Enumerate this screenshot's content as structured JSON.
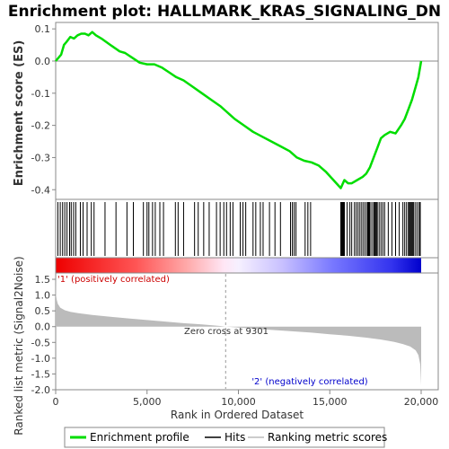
{
  "chart_data": {
    "type": "line",
    "title": "Enrichment plot: HALLMARK_KRAS_SIGNALING_DN",
    "xlabel": "Rank in Ordered Dataset",
    "xlim": [
      0,
      20000
    ],
    "x_ticks": [
      0,
      5000,
      10000,
      15000,
      20000
    ],
    "x_tick_labels": [
      "0",
      "5,000",
      "10,000",
      "15,000",
      "20,000"
    ],
    "es_panel": {
      "ylabel": "Enrichment score (ES)",
      "ylim": [
        -0.43,
        0.12
      ],
      "y_ticks": [
        0.1,
        0.0,
        -0.1,
        -0.2,
        -0.3,
        -0.4
      ],
      "y_tick_labels": [
        "0.1",
        "0.0",
        "-0.1",
        "-0.2",
        "-0.3",
        "-0.4"
      ],
      "series": [
        {
          "name": "Enrichment profile",
          "color": "#00dd00",
          "x": [
            0,
            300,
            450,
            600,
            800,
            1000,
            1200,
            1400,
            1600,
            1800,
            2000,
            2200,
            2500,
            3000,
            3500,
            3800,
            4200,
            4600,
            5000,
            5400,
            5800,
            6200,
            6600,
            7000,
            7500,
            8000,
            8500,
            9000,
            9301,
            9800,
            10300,
            10800,
            11300,
            11800,
            12300,
            12800,
            13200,
            13600,
            14000,
            14400,
            14800,
            15200,
            15600,
            15800,
            16000,
            16200,
            16500,
            16800,
            17000,
            17200,
            17400,
            17600,
            17800,
            18000,
            18300,
            18600,
            18900,
            19100,
            19300,
            19500,
            19700,
            19850,
            20000
          ],
          "y": [
            0.0,
            0.02,
            0.05,
            0.06,
            0.075,
            0.07,
            0.08,
            0.085,
            0.085,
            0.08,
            0.09,
            0.08,
            0.07,
            0.05,
            0.03,
            0.025,
            0.01,
            -0.005,
            -0.01,
            -0.01,
            -0.02,
            -0.035,
            -0.05,
            -0.06,
            -0.08,
            -0.1,
            -0.12,
            -0.14,
            -0.155,
            -0.18,
            -0.2,
            -0.22,
            -0.235,
            -0.25,
            -0.265,
            -0.28,
            -0.3,
            -0.31,
            -0.315,
            -0.325,
            -0.345,
            -0.37,
            -0.395,
            -0.37,
            -0.38,
            -0.38,
            -0.37,
            -0.36,
            -0.35,
            -0.33,
            -0.3,
            -0.27,
            -0.24,
            -0.23,
            -0.22,
            -0.225,
            -0.2,
            -0.18,
            -0.15,
            -0.12,
            -0.08,
            -0.05,
            0.0
          ]
        }
      ]
    },
    "hits_panel": {
      "label": "Hits",
      "hit_ranks": [
        120,
        250,
        380,
        500,
        620,
        760,
        850,
        980,
        1100,
        1350,
        1500,
        1720,
        1950,
        2100,
        2700,
        3300,
        3900,
        4250,
        4800,
        5000,
        5100,
        5300,
        5450,
        5700,
        5900,
        6550,
        6700,
        7000,
        7600,
        7800,
        8100,
        8400,
        8800,
        9000,
        9200,
        9350,
        9550,
        9700,
        10100,
        10250,
        10400,
        10800,
        10950,
        11200,
        11350,
        11700,
        12000,
        12300,
        12850,
        12950,
        13050,
        13150,
        13650,
        13800,
        13950,
        15600,
        15650,
        15700,
        15750,
        15800,
        15950,
        16100,
        16200,
        16350,
        16450,
        16550,
        16650,
        16750,
        16850,
        16950,
        17050,
        17100,
        17150,
        17200,
        17300,
        17400,
        17450,
        17500,
        17550,
        17600,
        17700,
        17800,
        17900,
        18000,
        18200,
        18400,
        18600,
        18800,
        19000,
        19100,
        19200,
        19300,
        19350,
        19400,
        19450,
        19500,
        19550,
        19600,
        19700,
        19800,
        19900,
        19950
      ]
    },
    "metric_panel": {
      "ylabel": "Ranked list metric (Signal2Noise)",
      "series_name": "Ranking metric scores",
      "color": "#bbbbbb",
      "ylim": [
        -2.0,
        1.7
      ],
      "y_ticks": [
        1.5,
        1.0,
        0.5,
        0.0,
        -0.5,
        -1.0,
        -1.5,
        -2.0
      ],
      "y_tick_labels": [
        "1.5",
        "1.0",
        "0.5",
        "0.0",
        "-0.5",
        "-1.0",
        "-1.5",
        "-2.0"
      ],
      "x": [
        0,
        20,
        60,
        120,
        250,
        500,
        800,
        1200,
        2000,
        3000,
        4000,
        5000,
        6000,
        7000,
        8000,
        9000,
        9301,
        10000,
        11000,
        12000,
        13000,
        14000,
        15000,
        16000,
        17000,
        17800,
        18500,
        19000,
        19400,
        19700,
        19850,
        19950,
        20000
      ],
      "y": [
        1.7,
        1.0,
        0.85,
        0.72,
        0.6,
        0.52,
        0.47,
        0.43,
        0.37,
        0.31,
        0.26,
        0.21,
        0.16,
        0.11,
        0.07,
        0.02,
        0.0,
        -0.03,
        -0.07,
        -0.11,
        -0.15,
        -0.19,
        -0.24,
        -0.29,
        -0.35,
        -0.41,
        -0.48,
        -0.55,
        -0.63,
        -0.75,
        -0.9,
        -1.2,
        -1.85
      ],
      "zero_cross_label": "Zero cross at 9301",
      "zero_cross_rank": 9301,
      "pos_label": "'1' (positively correlated)",
      "neg_label": "'2' (negatively correlated)"
    },
    "legend": {
      "placement": "bottom",
      "entries": [
        {
          "label": "Enrichment profile",
          "color": "#00dd00"
        },
        {
          "label": "Hits",
          "color": "#000000"
        },
        {
          "label": "Ranking metric scores",
          "color": "#bbbbbb"
        }
      ]
    },
    "grid": false
  }
}
